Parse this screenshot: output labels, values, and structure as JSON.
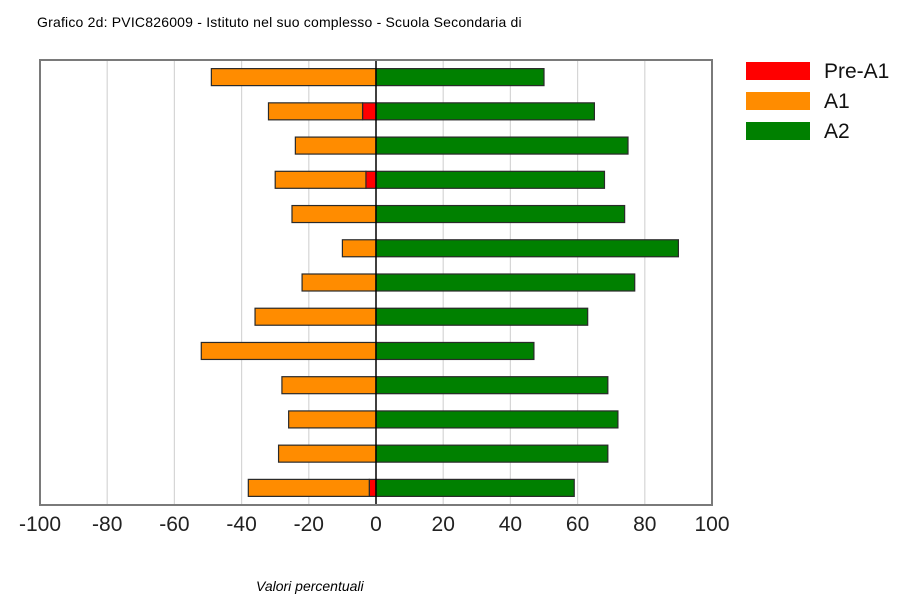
{
  "chart_data": {
    "type": "bar",
    "orientation": "horizontal-diverging",
    "title": "Grafico 2d: PVIC826009 - Istituto nel suo complesso - Scuola Secondaria di",
    "xlabel": "Valori percentuali",
    "ylabel": "",
    "xlim": [
      -100,
      100
    ],
    "xticks": [
      -100,
      -80,
      -60,
      -40,
      -20,
      0,
      20,
      40,
      60,
      80,
      100
    ],
    "grid": true,
    "legend_position": "top-right",
    "categories": [
      "",
      "",
      "",
      "",
      "",
      "",
      "",
      "",
      "",
      "",
      "",
      "",
      ""
    ],
    "series": [
      {
        "name": "Pre-A1",
        "color": "#ff0000",
        "values": [
          0,
          -4,
          0,
          -3,
          0,
          0,
          0,
          0,
          0,
          0,
          0,
          0,
          -2
        ]
      },
      {
        "name": "A1",
        "color": "#ff8c00",
        "values": [
          -49,
          -28,
          -24,
          -27,
          -25,
          -10,
          -22,
          -36,
          -52,
          -28,
          -26,
          -29,
          -36
        ]
      },
      {
        "name": "A2",
        "color": "#008000",
        "values": [
          50,
          65,
          75,
          68,
          74,
          90,
          77,
          63,
          47,
          69,
          72,
          69,
          59
        ]
      }
    ]
  }
}
